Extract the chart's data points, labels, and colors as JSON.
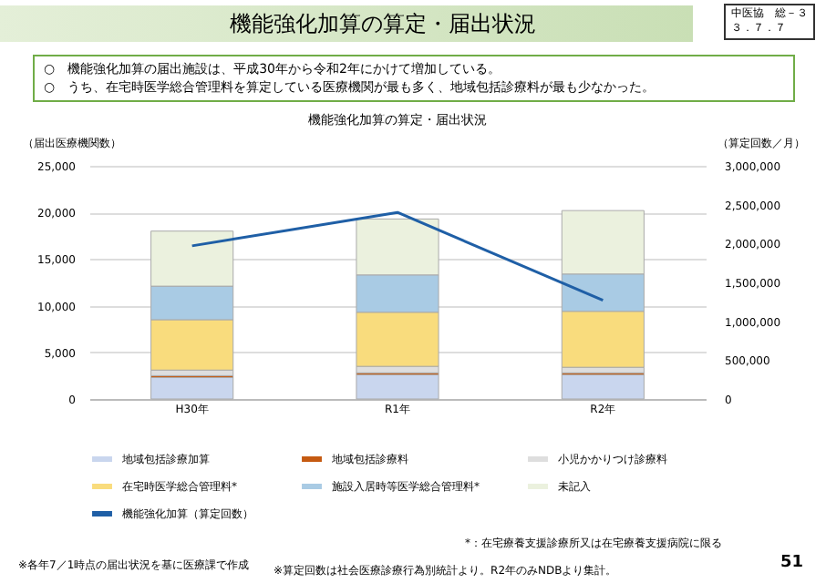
{
  "chart_data": {
    "type": "bar",
    "title": "機能強化加算の算定・届出状況",
    "subtitle": "○　機能強化加算の届出施設は、平成30年から令和2年にかけて増加している。\n○　うち、在宅時医学総合管理料を算定している医療機関が最も多く、地域包括診療料が最も少なかった。",
    "ylabel": "（届出医療機関数）",
    "y2label": "（算定回数／月）",
    "categories": [
      "H30年",
      "R1年",
      "R2年"
    ],
    "stacked": true,
    "legend": "bottom",
    "grid": "y",
    "ylim": [
      0,
      25000
    ],
    "yticks": [
      0,
      {
        "value": 5000,
        "label": "5,000"
      },
      {
        "value": 10000,
        "label": "10,000"
      },
      {
        "value": 15000,
        "label": "15,000"
      },
      {
        "value": 20000,
        "label": "20,000"
      },
      {
        "value": 25000,
        "label": "25,000"
      }
    ],
    "y2lim": [
      0,
      3000000
    ],
    "y2ticks": [
      0,
      {
        "value": 500000,
        "label": "500,000"
      },
      {
        "value": 1000000,
        "label": "1,000,000"
      },
      {
        "value": 1500000,
        "label": "1,500,000"
      },
      {
        "value": 2000000,
        "label": "2,000,000"
      },
      {
        "value": 2500000,
        "label": "2,500,000"
      },
      {
        "value": 3000000,
        "label": "3,000,000"
      }
    ],
    "series": [
      {
        "name": "地域包括診療加算",
        "color": "#c9d6ee",
        "values": [
          2300,
          2600,
          2600
        ]
      },
      {
        "name": "地域包括診療料",
        "color": "#c55a11",
        "values": [
          200,
          200,
          200
        ]
      },
      {
        "name": "小児かかりつけ診療料",
        "color": "#dedede",
        "values": [
          600,
          700,
          600
        ]
      },
      {
        "name": "在宅時医学総合管理料*",
        "color": "#f9dc7d",
        "values": [
          5400,
          5800,
          6000
        ]
      },
      {
        "name": "施設入居時等医学総合管理料*",
        "color": "#a9cbe4",
        "values": [
          3600,
          4000,
          4000
        ]
      },
      {
        "name": "未記入",
        "color": "#ebf1de",
        "values": [
          5900,
          6000,
          6800
        ]
      },
      {
        "name": "機能強化加算（算定回数）",
        "color": "#1f5fa6",
        "type": "line",
        "axis": "y2",
        "values": [
          1970000,
          2400000,
          1270000
        ]
      }
    ],
    "annotations": [
      "中医協　総－３",
      "３．７．７",
      "*：在宅療養支援診療所又は在宅療養支援病院に限る",
      "※各年7／1時点の届出状況を基に医療課で作成",
      "※算定回数は社会医療診療行為別統計より。R2年のみNDBより集計。",
      "51"
    ]
  }
}
